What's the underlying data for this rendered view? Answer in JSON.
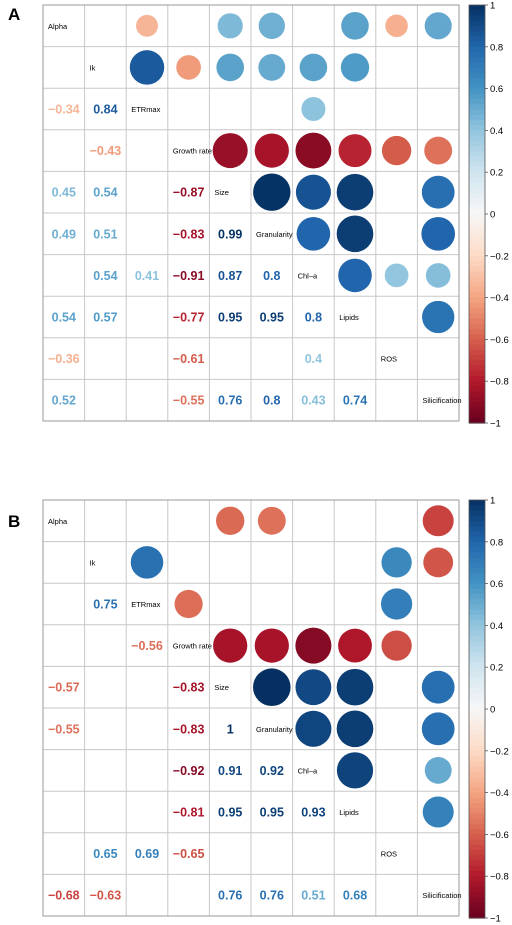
{
  "chart_data": [
    {
      "type": "heatmap",
      "panel_label": "A",
      "variables": [
        "Alpha",
        "Ik",
        "ETRmax",
        "Growth rate",
        "Size",
        "Granularity",
        "Chl–a",
        "Lipids",
        "ROS",
        "Silicification"
      ],
      "lower_triangle_labels": [
        {
          "r": 2,
          "c": 0,
          "value": -0.34
        },
        {
          "r": 2,
          "c": 1,
          "value": 0.84
        },
        {
          "r": 3,
          "c": 1,
          "value": -0.43
        },
        {
          "r": 4,
          "c": 0,
          "value": 0.45
        },
        {
          "r": 4,
          "c": 1,
          "value": 0.54
        },
        {
          "r": 4,
          "c": 3,
          "value": -0.87
        },
        {
          "r": 5,
          "c": 0,
          "value": 0.49
        },
        {
          "r": 5,
          "c": 1,
          "value": 0.51
        },
        {
          "r": 5,
          "c": 3,
          "value": -0.83
        },
        {
          "r": 5,
          "c": 4,
          "value": 0.99
        },
        {
          "r": 6,
          "c": 1,
          "value": 0.54
        },
        {
          "r": 6,
          "c": 2,
          "value": 0.41
        },
        {
          "r": 6,
          "c": 3,
          "value": -0.91
        },
        {
          "r": 6,
          "c": 4,
          "value": 0.87
        },
        {
          "r": 6,
          "c": 5,
          "value": 0.8
        },
        {
          "r": 7,
          "c": 0,
          "value": 0.54
        },
        {
          "r": 7,
          "c": 1,
          "value": 0.57
        },
        {
          "r": 7,
          "c": 3,
          "value": -0.77
        },
        {
          "r": 7,
          "c": 4,
          "value": 0.95
        },
        {
          "r": 7,
          "c": 5,
          "value": 0.95
        },
        {
          "r": 7,
          "c": 6,
          "value": 0.8
        },
        {
          "r": 8,
          "c": 0,
          "value": -0.36
        },
        {
          "r": 8,
          "c": 3,
          "value": -0.61
        },
        {
          "r": 8,
          "c": 6,
          "value": 0.4
        },
        {
          "r": 9,
          "c": 0,
          "value": 0.52
        },
        {
          "r": 9,
          "c": 3,
          "value": -0.55
        },
        {
          "r": 9,
          "c": 4,
          "value": 0.76
        },
        {
          "r": 9,
          "c": 5,
          "value": 0.8
        },
        {
          "r": 9,
          "c": 6,
          "value": 0.43
        },
        {
          "r": 9,
          "c": 7,
          "value": 0.74
        }
      ],
      "upper_triangle_circles": [
        {
          "r": 0,
          "c": 2,
          "value": -0.34
        },
        {
          "r": 0,
          "c": 4,
          "value": 0.45
        },
        {
          "r": 0,
          "c": 5,
          "value": 0.49
        },
        {
          "r": 0,
          "c": 7,
          "value": 0.54
        },
        {
          "r": 0,
          "c": 8,
          "value": -0.36
        },
        {
          "r": 0,
          "c": 9,
          "value": 0.52
        },
        {
          "r": 1,
          "c": 2,
          "value": 0.84
        },
        {
          "r": 1,
          "c": 3,
          "value": -0.43
        },
        {
          "r": 1,
          "c": 4,
          "value": 0.54
        },
        {
          "r": 1,
          "c": 5,
          "value": 0.51
        },
        {
          "r": 1,
          "c": 6,
          "value": 0.54
        },
        {
          "r": 1,
          "c": 7,
          "value": 0.57
        },
        {
          "r": 2,
          "c": 6,
          "value": 0.41
        },
        {
          "r": 3,
          "c": 4,
          "value": -0.87
        },
        {
          "r": 3,
          "c": 5,
          "value": -0.83
        },
        {
          "r": 3,
          "c": 6,
          "value": -0.91
        },
        {
          "r": 3,
          "c": 7,
          "value": -0.77
        },
        {
          "r": 3,
          "c": 8,
          "value": -0.61
        },
        {
          "r": 3,
          "c": 9,
          "value": -0.55
        },
        {
          "r": 4,
          "c": 5,
          "value": 0.99
        },
        {
          "r": 4,
          "c": 6,
          "value": 0.87
        },
        {
          "r": 4,
          "c": 7,
          "value": 0.95
        },
        {
          "r": 4,
          "c": 9,
          "value": 0.76
        },
        {
          "r": 5,
          "c": 6,
          "value": 0.8
        },
        {
          "r": 5,
          "c": 7,
          "value": 0.95
        },
        {
          "r": 5,
          "c": 9,
          "value": 0.8
        },
        {
          "r": 6,
          "c": 7,
          "value": 0.8
        },
        {
          "r": 6,
          "c": 8,
          "value": 0.4
        },
        {
          "r": 6,
          "c": 9,
          "value": 0.43
        },
        {
          "r": 7,
          "c": 9,
          "value": 0.74
        }
      ],
      "colorbar": {
        "min": -1,
        "max": 1,
        "ticks": [
          "1",
          "0.8",
          "0.6",
          "0.4",
          "0.2",
          "0",
          "−0.2",
          "−0.4",
          "−0.6",
          "−0.8",
          "−1"
        ]
      }
    },
    {
      "type": "heatmap",
      "panel_label": "B",
      "variables": [
        "Alpha",
        "Ik",
        "ETRmax",
        "Growth rate",
        "Size",
        "Granularity",
        "Chl–a",
        "Lipids",
        "ROS",
        "Silicification"
      ],
      "lower_triangle_labels": [
        {
          "r": 2,
          "c": 1,
          "value": 0.75
        },
        {
          "r": 3,
          "c": 2,
          "value": -0.56
        },
        {
          "r": 4,
          "c": 0,
          "value": -0.57
        },
        {
          "r": 4,
          "c": 3,
          "value": -0.83
        },
        {
          "r": 5,
          "c": 0,
          "value": -0.55
        },
        {
          "r": 5,
          "c": 3,
          "value": -0.83
        },
        {
          "r": 5,
          "c": 4,
          "value": 1
        },
        {
          "r": 6,
          "c": 3,
          "value": -0.92
        },
        {
          "r": 6,
          "c": 4,
          "value": 0.91
        },
        {
          "r": 6,
          "c": 5,
          "value": 0.92
        },
        {
          "r": 7,
          "c": 3,
          "value": -0.81
        },
        {
          "r": 7,
          "c": 4,
          "value": 0.95
        },
        {
          "r": 7,
          "c": 5,
          "value": 0.95
        },
        {
          "r": 7,
          "c": 6,
          "value": 0.93
        },
        {
          "r": 8,
          "c": 1,
          "value": 0.65
        },
        {
          "r": 8,
          "c": 2,
          "value": 0.69
        },
        {
          "r": 8,
          "c": 3,
          "value": -0.65
        },
        {
          "r": 9,
          "c": 0,
          "value": -0.68
        },
        {
          "r": 9,
          "c": 1,
          "value": -0.63
        },
        {
          "r": 9,
          "c": 4,
          "value": 0.76
        },
        {
          "r": 9,
          "c": 5,
          "value": 0.76
        },
        {
          "r": 9,
          "c": 6,
          "value": 0.51
        },
        {
          "r": 9,
          "c": 7,
          "value": 0.68
        }
      ],
      "upper_triangle_circles": [
        {
          "r": 0,
          "c": 4,
          "value": -0.57
        },
        {
          "r": 0,
          "c": 5,
          "value": -0.55
        },
        {
          "r": 0,
          "c": 9,
          "value": -0.68
        },
        {
          "r": 1,
          "c": 2,
          "value": 0.75
        },
        {
          "r": 1,
          "c": 8,
          "value": 0.65
        },
        {
          "r": 1,
          "c": 9,
          "value": -0.63
        },
        {
          "r": 2,
          "c": 3,
          "value": -0.56
        },
        {
          "r": 2,
          "c": 8,
          "value": 0.69
        },
        {
          "r": 3,
          "c": 4,
          "value": -0.83
        },
        {
          "r": 3,
          "c": 5,
          "value": -0.83
        },
        {
          "r": 3,
          "c": 6,
          "value": -0.92
        },
        {
          "r": 3,
          "c": 7,
          "value": -0.81
        },
        {
          "r": 3,
          "c": 8,
          "value": -0.65
        },
        {
          "r": 4,
          "c": 5,
          "value": 1
        },
        {
          "r": 4,
          "c": 6,
          "value": 0.91
        },
        {
          "r": 4,
          "c": 7,
          "value": 0.95
        },
        {
          "r": 4,
          "c": 9,
          "value": 0.76
        },
        {
          "r": 5,
          "c": 6,
          "value": 0.92
        },
        {
          "r": 5,
          "c": 7,
          "value": 0.95
        },
        {
          "r": 5,
          "c": 9,
          "value": 0.76
        },
        {
          "r": 6,
          "c": 7,
          "value": 0.93
        },
        {
          "r": 6,
          "c": 9,
          "value": 0.51
        },
        {
          "r": 7,
          "c": 9,
          "value": 0.68
        }
      ],
      "colorbar": {
        "min": -1,
        "max": 1,
        "ticks": [
          "1",
          "0.8",
          "0.6",
          "0.4",
          "0.2",
          "0",
          "−0.2",
          "−0.4",
          "−0.6",
          "−0.8",
          "−1"
        ]
      }
    }
  ]
}
